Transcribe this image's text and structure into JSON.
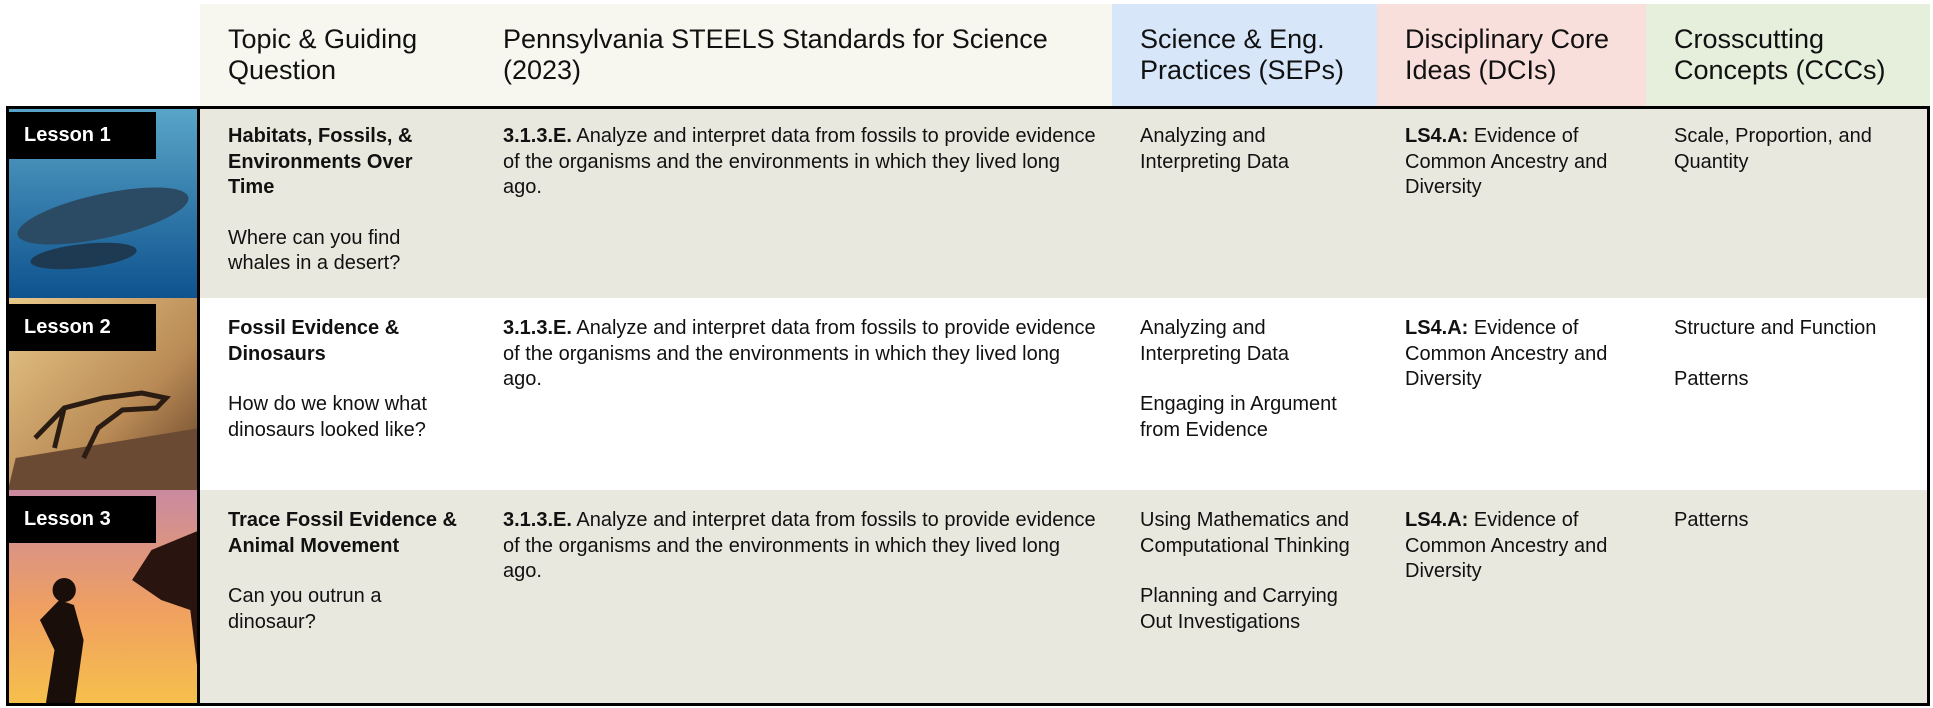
{
  "table": {
    "headers": [
      "Topic & Guiding Question",
      "Pennsylvania STEELS Standards for Science (2023)",
      "Science & Eng. Practices (SEPs)",
      "Disciplinary Core Ideas (DCIs)",
      "Crosscutting Concepts (CCCs)"
    ],
    "rows": [
      {
        "lesson": "Lesson 1",
        "topic": "Habitats, Fossils, & Environments Over Time",
        "question": "Where can you find whales in a desert?",
        "standard_code": "3.1.3.E.",
        "standard_text": "Analyze and interpret data from fossils to provide evidence of the organisms and the environments in which they lived long ago.",
        "seps": [
          "Analyzing and Interpreting Data"
        ],
        "dci_code": "LS4.A:",
        "dci_text": "Evidence of Common Ancestry and Diversity",
        "cccs": [
          "Scale, Proportion, and Quantity"
        ]
      },
      {
        "lesson": "Lesson 2",
        "topic": "Fossil Evidence & Dinosaurs",
        "question": "How do we know what dinosaurs looked like?",
        "standard_code": "3.1.3.E.",
        "standard_text": "Analyze and interpret data from fossils to provide evidence of the organisms and the environments in which they lived long ago.",
        "seps": [
          "Analyzing and Interpreting Data",
          "Engaging in Argument from Evidence"
        ],
        "dci_code": "LS4.A:",
        "dci_text": "Evidence of Common Ancestry and Diversity",
        "cccs": [
          "Structure and Function",
          "Patterns"
        ]
      },
      {
        "lesson": "Lesson 3",
        "topic": "Trace Fossil Evidence & Animal Movement",
        "question": "Can you outrun a dinosaur?",
        "standard_code": "3.1.3.E.",
        "standard_text": "Analyze and interpret data from fossils to provide evidence of the organisms and the environments in which they lived long ago.",
        "seps": [
          "Using Mathematics and Computational Thinking",
          "Planning and Carrying Out Investigations"
        ],
        "dci_code": "LS4.A:",
        "dci_text": "Evidence of Common Ancestry and Diversity",
        "cccs": [
          "Patterns"
        ]
      }
    ]
  }
}
